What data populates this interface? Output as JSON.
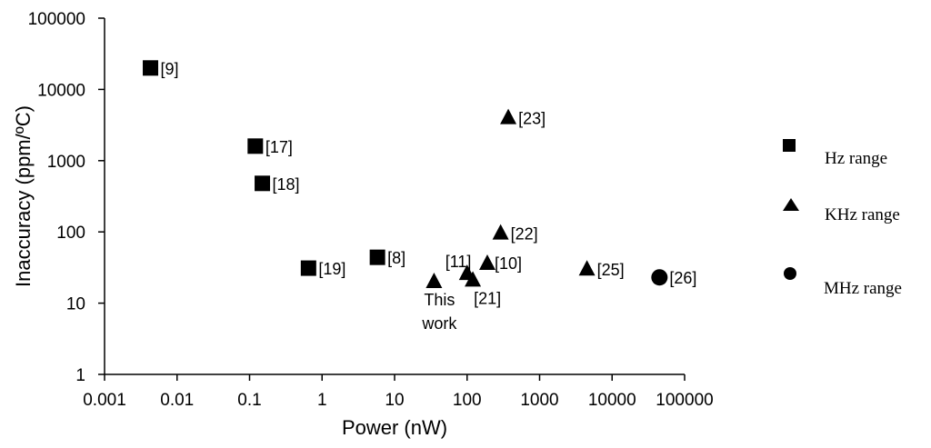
{
  "chart_data": {
    "type": "scatter",
    "xscale": "log",
    "yscale": "log",
    "xlabel": "Power (nW)",
    "ylabel": "Inaccuracy (ppm/ºC)",
    "xlim": [
      0.001,
      100000
    ],
    "ylim": [
      1,
      100000
    ],
    "xticks": [
      "0.001",
      "0.01",
      "0.1",
      "1",
      "10",
      "100",
      "1000",
      "10000",
      "100000"
    ],
    "yticks": [
      "1",
      "10",
      "100",
      "1000",
      "10000",
      "100000"
    ],
    "series": [
      {
        "name": "Hz range",
        "marker": "square",
        "points": [
          {
            "x": 0.0043,
            "y": 20000,
            "label": "[9]"
          },
          {
            "x": 0.12,
            "y": 1600,
            "label": "[17]"
          },
          {
            "x": 0.15,
            "y": 480,
            "label": "[18]"
          },
          {
            "x": 0.65,
            "y": 31,
            "label": "[19]"
          },
          {
            "x": 5.8,
            "y": 44,
            "label": "[8]"
          }
        ]
      },
      {
        "name": "KHz range",
        "marker": "triangle",
        "points": [
          {
            "x": 35,
            "y": 20,
            "label": "This work"
          },
          {
            "x": 100,
            "y": 26,
            "label": "[11]"
          },
          {
            "x": 120,
            "y": 21,
            "label": "[21]"
          },
          {
            "x": 190,
            "y": 36,
            "label": "[10]"
          },
          {
            "x": 290,
            "y": 96,
            "label": "[22]"
          },
          {
            "x": 370,
            "y": 4000,
            "label": "[23]"
          },
          {
            "x": 4500,
            "y": 30,
            "label": "[25]"
          }
        ]
      },
      {
        "name": "MHz range",
        "marker": "circle",
        "points": [
          {
            "x": 45000,
            "y": 23,
            "label": "[26]"
          }
        ]
      }
    ]
  }
}
